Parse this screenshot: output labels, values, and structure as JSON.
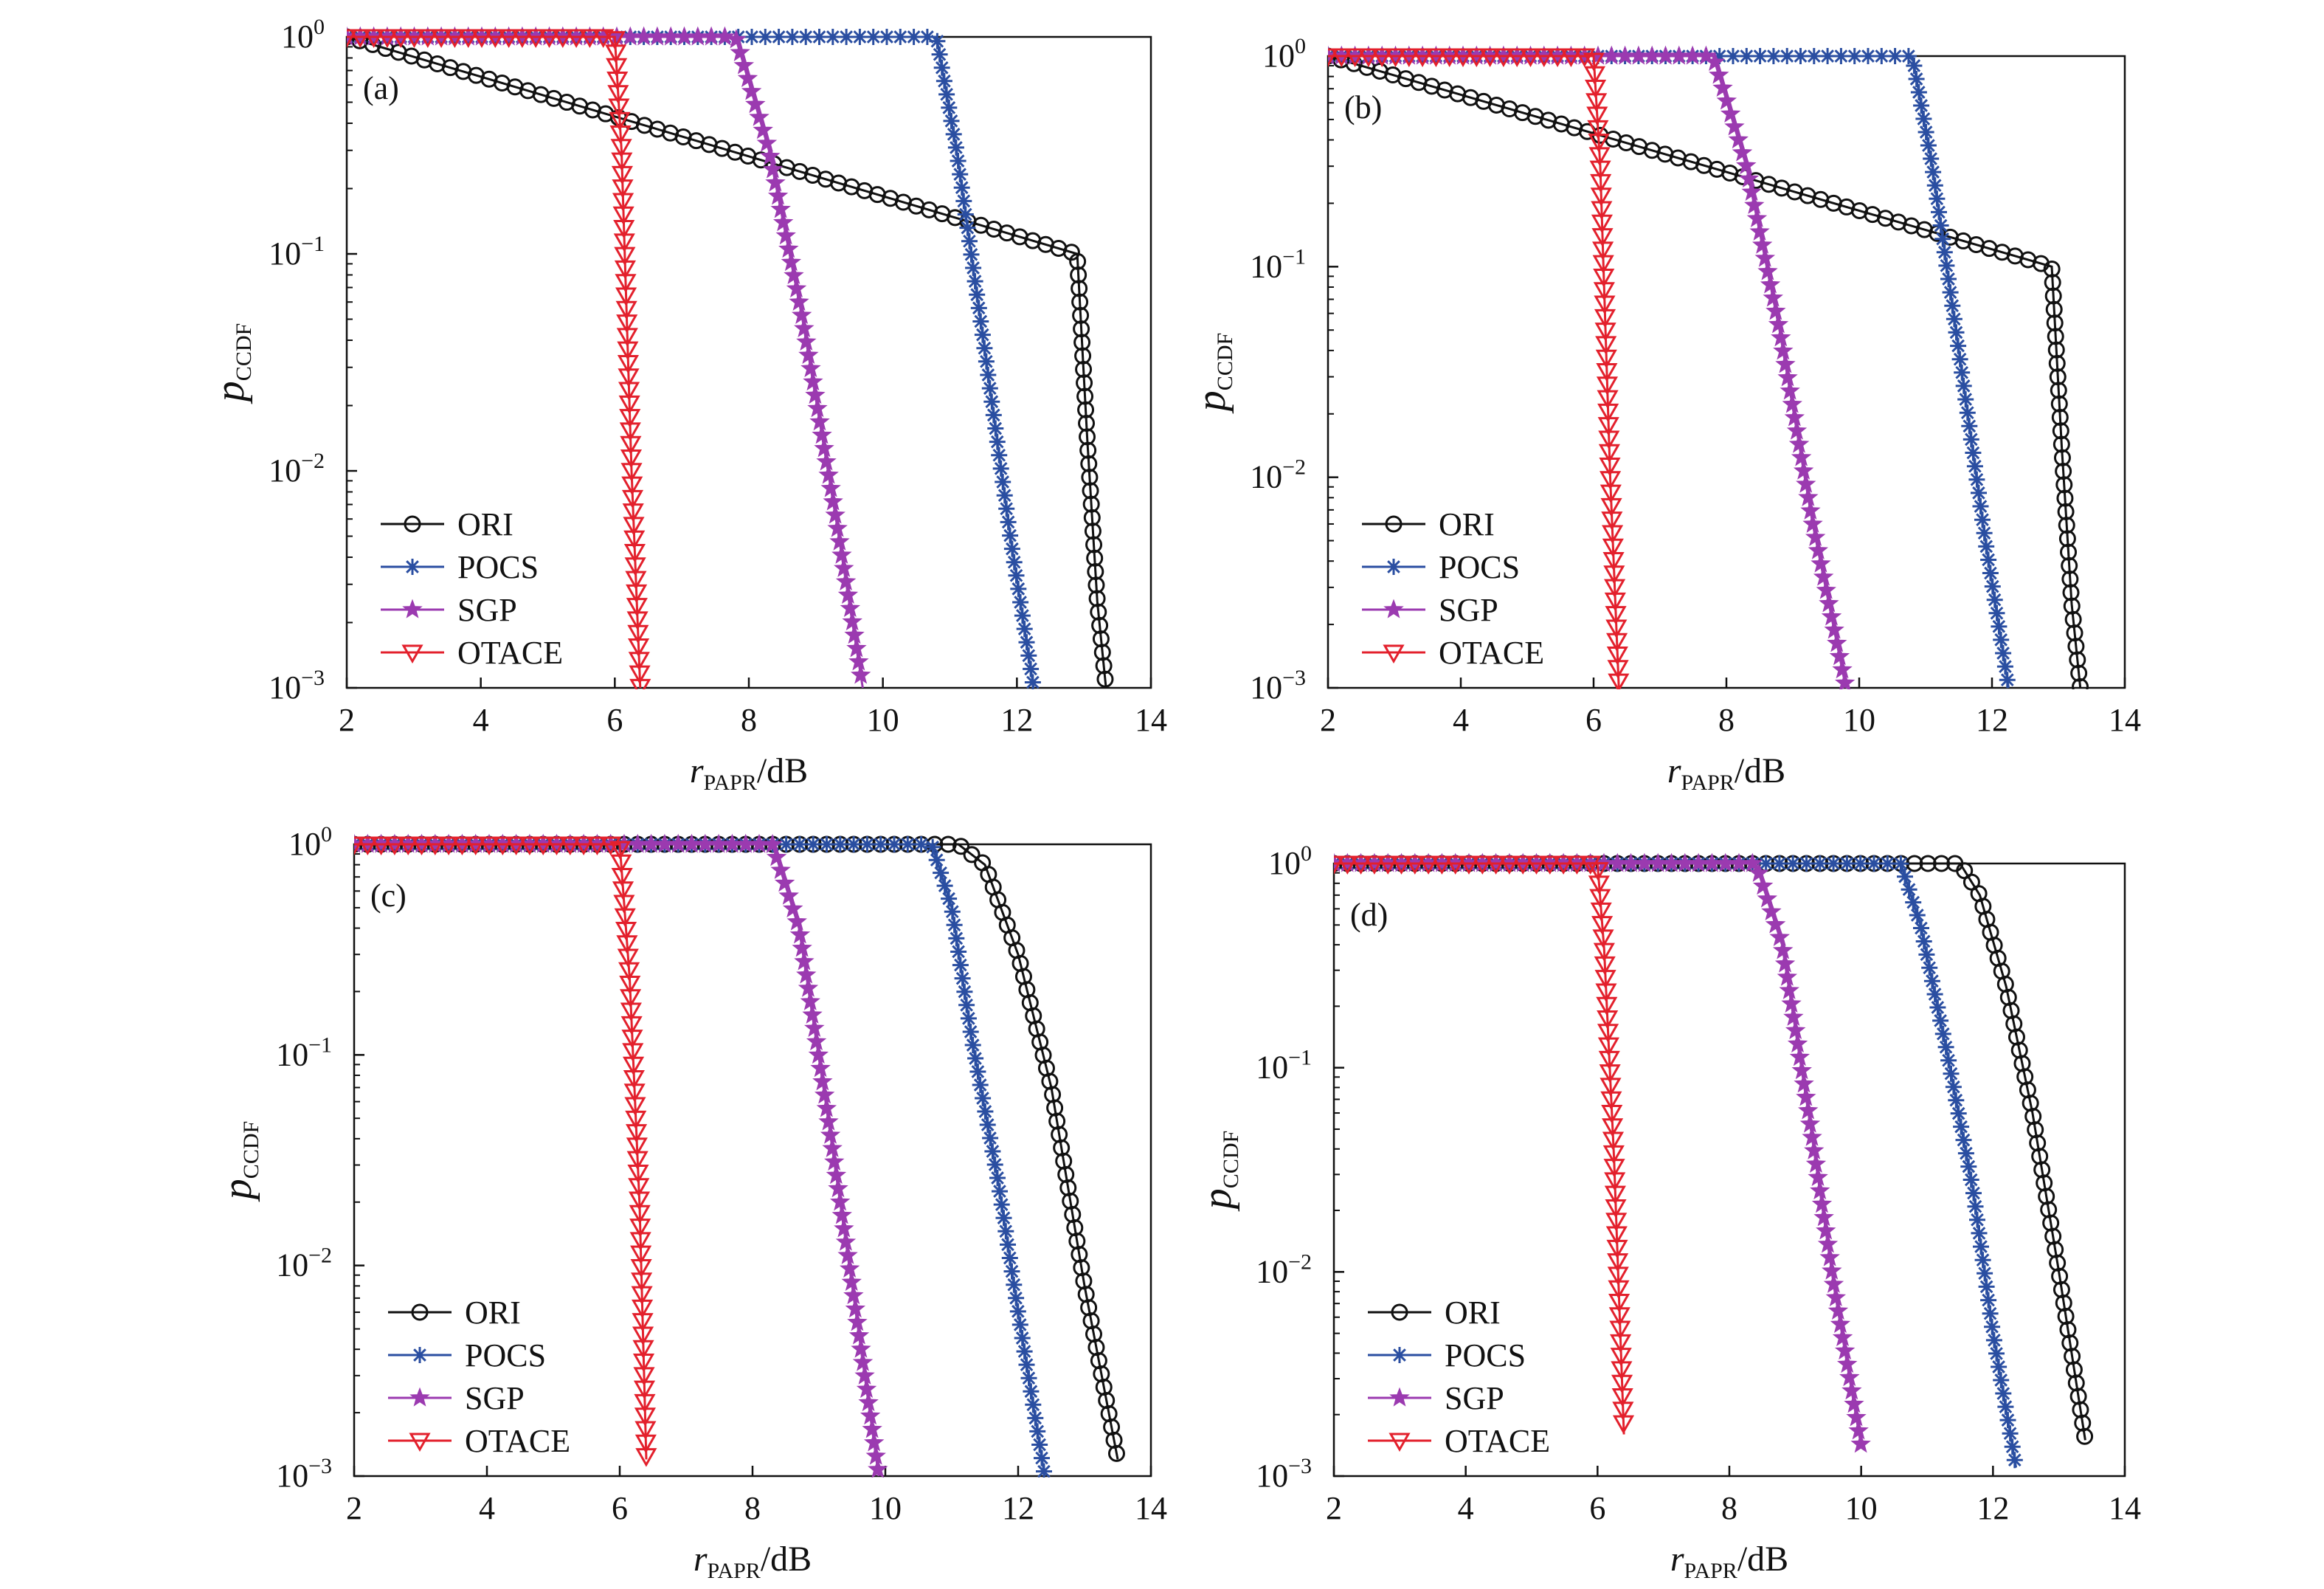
{
  "chart_data": [
    {
      "type": "line",
      "panel_label": "(a)",
      "xlabel": {
        "main": "r",
        "sub": "PAPR",
        "unit": "/dB"
      },
      "ylabel": {
        "main": "p",
        "sub": "CCDF"
      },
      "xlim": [
        2,
        14
      ],
      "ylim": [
        0.001,
        1
      ],
      "yscale": "log",
      "xticks": [
        "2",
        "4",
        "6",
        "8",
        "10",
        "12",
        "14"
      ],
      "yticks": [
        {
          "base": "10",
          "exp": "0"
        },
        {
          "base": "10",
          "exp": "−1"
        },
        {
          "base": "10",
          "exp": "−2"
        },
        {
          "base": "10",
          "exp": "−3"
        }
      ],
      "legend_position": "bottom-left",
      "series": [
        {
          "name": "ORI",
          "x": [
            12.9,
            13.05,
            13.2,
            13.33
          ],
          "y": [
            0.1,
            0.014,
            0.0025,
            0.001
          ]
        },
        {
          "name": "POCS",
          "x": [
            10.8,
            11.1,
            11.5,
            11.9,
            12.25
          ],
          "y": [
            1,
            0.3,
            0.04,
            0.005,
            0.001
          ]
        },
        {
          "name": "SGP",
          "x": [
            7.8,
            8.3,
            8.8,
            9.3,
            9.7
          ],
          "y": [
            1,
            0.3,
            0.05,
            0.006,
            0.001
          ]
        },
        {
          "name": "OTACE",
          "x": [
            6.0,
            6.1,
            6.25,
            6.38
          ],
          "y": [
            1,
            0.3,
            0.01,
            0.001
          ]
        }
      ]
    },
    {
      "type": "line",
      "panel_label": "(b)",
      "xlabel": {
        "main": "r",
        "sub": "PAPR",
        "unit": "/dB"
      },
      "ylabel": {
        "main": "p",
        "sub": "CCDF"
      },
      "xlim": [
        2,
        14
      ],
      "ylim": [
        0.001,
        1
      ],
      "yscale": "log",
      "xticks": [
        "2",
        "4",
        "6",
        "8",
        "10",
        "12",
        "14"
      ],
      "yticks": [
        {
          "base": "10",
          "exp": "0"
        },
        {
          "base": "10",
          "exp": "−1"
        },
        {
          "base": "10",
          "exp": "−2"
        },
        {
          "base": "10",
          "exp": "−3"
        }
      ],
      "legend_position": "bottom-left",
      "series": [
        {
          "name": "ORI",
          "x": [
            12.9,
            13.05,
            13.2,
            13.33
          ],
          "y": [
            0.1,
            0.014,
            0.0025,
            0.001
          ]
        },
        {
          "name": "POCS",
          "x": [
            10.8,
            11.1,
            11.5,
            11.9,
            12.25
          ],
          "y": [
            1,
            0.3,
            0.04,
            0.005,
            0.001
          ]
        },
        {
          "name": "SGP",
          "x": [
            7.8,
            8.3,
            8.8,
            9.3,
            9.8
          ],
          "y": [
            1,
            0.3,
            0.05,
            0.006,
            0.001
          ]
        },
        {
          "name": "OTACE",
          "x": [
            6.0,
            6.1,
            6.25,
            6.38
          ],
          "y": [
            1,
            0.3,
            0.01,
            0.001
          ]
        }
      ]
    },
    {
      "type": "line",
      "panel_label": "(c)",
      "xlabel": {
        "main": "r",
        "sub": "PAPR",
        "unit": "/dB"
      },
      "ylabel": {
        "main": "p",
        "sub": "CCDF"
      },
      "xlim": [
        2,
        14
      ],
      "ylim": [
        0.001,
        1
      ],
      "yscale": "log",
      "xticks": [
        "2",
        "4",
        "6",
        "8",
        "10",
        "12",
        "14"
      ],
      "yticks": [
        {
          "base": "10",
          "exp": "0"
        },
        {
          "base": "10",
          "exp": "−1"
        },
        {
          "base": "10",
          "exp": "−2"
        },
        {
          "base": "10",
          "exp": "−3"
        }
      ],
      "legend_position": "bottom-left",
      "series": [
        {
          "name": "ORI",
          "x": [
            11.1,
            11.5,
            12.0,
            12.5,
            13.0,
            13.5
          ],
          "y": [
            1,
            0.8,
            0.3,
            0.07,
            0.008,
            0.0012
          ]
        },
        {
          "name": "POCS",
          "x": [
            10.7,
            11.0,
            11.3,
            11.7,
            12.0,
            12.4
          ],
          "y": [
            1,
            0.5,
            0.12,
            0.025,
            0.006,
            0.001
          ]
        },
        {
          "name": "SGP",
          "x": [
            8.3,
            8.7,
            9.1,
            9.5,
            9.9
          ],
          "y": [
            1,
            0.4,
            0.06,
            0.008,
            0.001
          ]
        },
        {
          "name": "OTACE",
          "x": [
            6.0,
            6.15,
            6.3,
            6.4
          ],
          "y": [
            1,
            0.23,
            0.019,
            0.0012
          ]
        }
      ]
    },
    {
      "type": "line",
      "panel_label": "(d)",
      "xlabel": {
        "main": "r",
        "sub": "PAPR",
        "unit": "/dB"
      },
      "ylabel": {
        "main": "p",
        "sub": "CCDF"
      },
      "xlim": [
        2,
        14
      ],
      "ylim": [
        0.001,
        1
      ],
      "yscale": "log",
      "xticks": [
        "2",
        "4",
        "6",
        "8",
        "10",
        "12",
        "14"
      ],
      "yticks": [
        {
          "base": "10",
          "exp": "0"
        },
        {
          "base": "10",
          "exp": "−1"
        },
        {
          "base": "10",
          "exp": "−2"
        },
        {
          "base": "10",
          "exp": "−3"
        }
      ],
      "legend_position": "bottom-left",
      "series": [
        {
          "name": "ORI",
          "x": [
            11.5,
            11.8,
            12.2,
            12.6,
            13.0,
            13.4
          ],
          "y": [
            1,
            0.7,
            0.25,
            0.06,
            0.01,
            0.0015
          ]
        },
        {
          "name": "POCS",
          "x": [
            10.6,
            10.9,
            11.3,
            11.7,
            12.0,
            12.35
          ],
          "y": [
            1,
            0.5,
            0.12,
            0.025,
            0.005,
            0.0011
          ]
        },
        {
          "name": "SGP",
          "x": [
            8.4,
            8.8,
            9.2,
            9.6,
            10.0
          ],
          "y": [
            1,
            0.4,
            0.06,
            0.008,
            0.0014
          ]
        },
        {
          "name": "OTACE",
          "x": [
            6.0,
            6.1,
            6.25,
            6.4
          ],
          "y": [
            1,
            0.38,
            0.036,
            0.0016
          ]
        }
      ]
    }
  ],
  "series_styles": {
    "ORI": {
      "color": "#111111",
      "marker": "circle-icon"
    },
    "POCS": {
      "color": "#2a4ea1",
      "marker": "asterisk-icon"
    },
    "SGP": {
      "color": "#9b3ab0",
      "marker": "star-icon"
    },
    "OTACE": {
      "color": "#e3202c",
      "marker": "triangle-down-icon"
    }
  }
}
